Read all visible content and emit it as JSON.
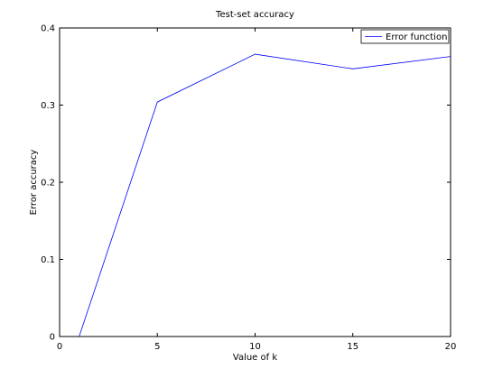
{
  "chart_data": {
    "type": "line",
    "title": "Test-set accuracy",
    "xlabel": "Value of k",
    "ylabel": "Error accuracy",
    "xlim": [
      0,
      20
    ],
    "ylim": [
      0,
      0.4
    ],
    "xticks": [
      0,
      5,
      10,
      15,
      20
    ],
    "xtick_labels": [
      "0",
      "5",
      "10",
      "15",
      "20"
    ],
    "yticks": [
      0,
      0.1,
      0.2,
      0.3,
      0.4
    ],
    "ytick_labels": [
      "0",
      "0.1",
      "0.2",
      "0.3",
      "0.4"
    ],
    "grid": false,
    "legend_position": "top-right",
    "series": [
      {
        "name": "Error function",
        "color": "#0000ff",
        "x": [
          1,
          5,
          10,
          15,
          20
        ],
        "y": [
          0,
          0.304,
          0.366,
          0.347,
          0.363
        ]
      }
    ]
  }
}
